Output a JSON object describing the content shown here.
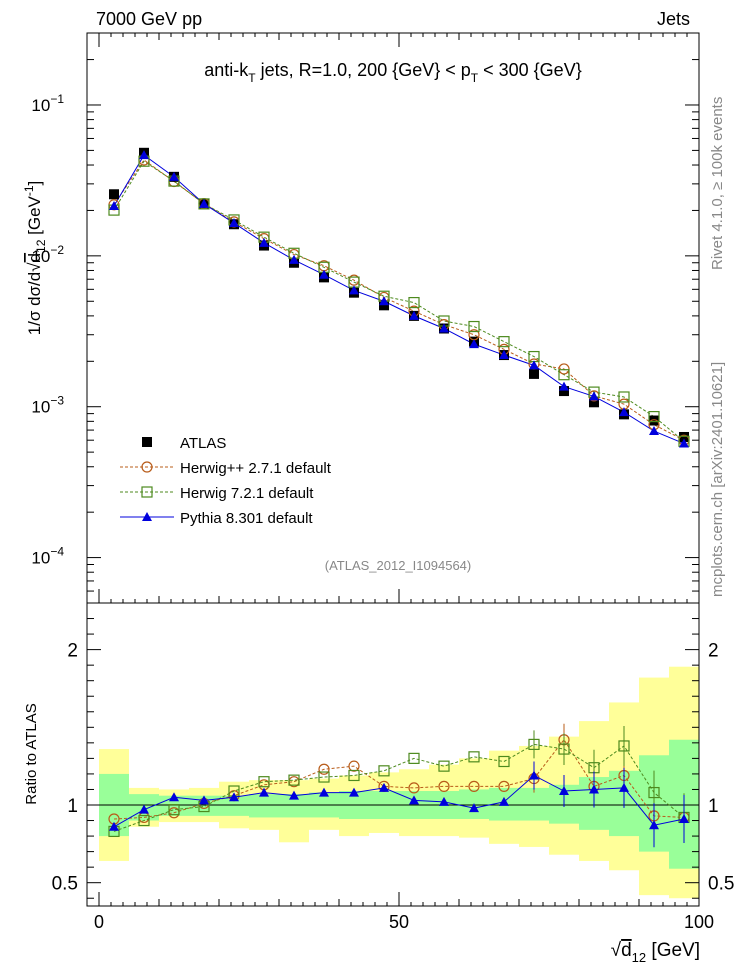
{
  "header": {
    "left": "7000 GeV pp",
    "right": "Jets"
  },
  "side_text": {
    "rivet": "Rivet 4.1.0, ≥ 100k events",
    "mcplots": "mcplots.cern.ch [arXiv:2401.10621]"
  },
  "chart_data": {
    "type": "line",
    "title_parts": {
      "a": "anti-k",
      "a_sub": "T",
      "b": " jets, R=1.0, 200 {GeV}  < p",
      "b_sub": "T",
      "c": " < 300 {GeV}"
    },
    "analysis_label": "(ATLAS_2012_I1094564)",
    "x": [
      2.5,
      7.5,
      12.5,
      17.5,
      22.5,
      27.5,
      32.5,
      37.5,
      42.5,
      47.5,
      52.5,
      57.5,
      62.5,
      67.5,
      72.5,
      77.5,
      82.5,
      87.5,
      92.5,
      97.5
    ],
    "xlim": [
      -2,
      100
    ],
    "main_ylim": [
      5e-05,
      0.3
    ],
    "main_yscale": "log",
    "ratio_ylim": [
      0.35,
      2.3
    ],
    "xlabel": {
      "pre": "√",
      "d": "d",
      "sub": "12",
      "unit": " [GeV]"
    },
    "ylabel_main": {
      "a": "1/σ dσ/d",
      "root": "√",
      "d": "d",
      "sub": "12",
      "unit": " [GeV",
      "sup": "-1",
      "close": "]"
    },
    "ylabel_ratio": "Ratio to ATLAS",
    "main_ticks": [
      {
        "v": 0.0001,
        "base": "10",
        "exp": "−4"
      },
      {
        "v": 0.001,
        "base": "10",
        "exp": "−3"
      },
      {
        "v": 0.01,
        "base": "10",
        "exp": "−2"
      },
      {
        "v": 0.1,
        "base": "10",
        "exp": "−1"
      }
    ],
    "ratio_ticks": [
      {
        "v": 0.5,
        "label": "0.5"
      },
      {
        "v": 1,
        "label": "1"
      },
      {
        "v": 2,
        "label": "2"
      }
    ],
    "x_ticks": [
      {
        "v": 0,
        "label": "0"
      },
      {
        "v": 50,
        "label": "50"
      },
      {
        "v": 100,
        "label": "100"
      }
    ],
    "ratio_bands": {
      "green_lo": [
        0.8,
        0.9,
        0.93,
        0.93,
        0.93,
        0.92,
        0.92,
        0.92,
        0.91,
        0.91,
        0.91,
        0.91,
        0.91,
        0.9,
        0.9,
        0.88,
        0.84,
        0.8,
        0.7,
        0.59
      ],
      "green_hi": [
        1.2,
        1.07,
        1.06,
        1.06,
        1.06,
        1.07,
        1.07,
        1.08,
        1.09,
        1.09,
        1.09,
        1.09,
        1.1,
        1.11,
        1.11,
        1.13,
        1.18,
        1.22,
        1.32,
        1.42
      ],
      "yellow_lo": [
        0.64,
        0.86,
        0.89,
        0.89,
        0.85,
        0.84,
        0.76,
        0.84,
        0.8,
        0.82,
        0.8,
        0.8,
        0.79,
        0.75,
        0.73,
        0.68,
        0.64,
        0.58,
        0.42,
        0.4
      ],
      "yellow_hi": [
        1.36,
        1.11,
        1.1,
        1.11,
        1.15,
        1.16,
        1.16,
        1.17,
        1.19,
        1.21,
        1.23,
        1.26,
        1.3,
        1.35,
        1.38,
        1.44,
        1.54,
        1.66,
        1.82,
        1.89
      ]
    },
    "series": [
      {
        "name": "ATLAS",
        "marker": "square-filled",
        "color": "#000000",
        "values": [
          0.0256,
          0.0482,
          0.0334,
          0.022,
          0.0162,
          0.0117,
          0.009,
          0.0072,
          0.0057,
          0.0047,
          0.004,
          0.0033,
          0.0027,
          0.0022,
          0.00165,
          0.00127,
          0.00107,
          0.00089,
          0.00081,
          0.00063
        ]
      },
      {
        "name": "Herwig++ 2.7.1 default",
        "marker": "circle-open",
        "color": "#b85c1a",
        "values": [
          0.0218,
          0.0432,
          0.0311,
          0.0222,
          0.0168,
          0.013,
          0.0102,
          0.0086,
          0.0069,
          0.0053,
          0.0043,
          0.0035,
          0.003,
          0.0024,
          0.00192,
          0.00178,
          0.00118,
          0.00104,
          0.00076,
          0.0006
        ]
      },
      {
        "name": "Herwig 7.2.1 default",
        "marker": "square-open",
        "color": "#4d8a1e",
        "values": [
          0.0201,
          0.0424,
          0.0313,
          0.0221,
          0.0173,
          0.0133,
          0.0104,
          0.0084,
          0.0067,
          0.0054,
          0.0049,
          0.0037,
          0.0034,
          0.0027,
          0.00215,
          0.00163,
          0.00125,
          0.00116,
          0.00086,
          0.00059
        ]
      },
      {
        "name": "Pythia 8.301 default",
        "marker": "triangle-filled",
        "color": "#0000dd",
        "values": [
          0.0214,
          0.0465,
          0.0334,
          0.0221,
          0.0165,
          0.0122,
          0.0094,
          0.0075,
          0.0059,
          0.005,
          0.004,
          0.0033,
          0.0026,
          0.0022,
          0.00188,
          0.00136,
          0.00117,
          0.00092,
          0.00069,
          0.00057
        ]
      }
    ],
    "ratios": {
      "Herwig++ 2.7.1 default": [
        0.91,
        0.92,
        0.95,
        1.01,
        1.06,
        1.13,
        1.15,
        1.23,
        1.25,
        1.12,
        1.11,
        1.12,
        1.12,
        1.12,
        1.17,
        1.42,
        1.12,
        1.19,
        0.93,
        0.92
      ],
      "Herwig 7.2.1 default": [
        0.83,
        0.9,
        0.97,
        0.99,
        1.09,
        1.15,
        1.16,
        1.18,
        1.19,
        1.22,
        1.3,
        1.25,
        1.31,
        1.28,
        1.39,
        1.36,
        1.24,
        1.38,
        1.08,
        0.92
      ],
      "Pythia 8.301 default": [
        0.86,
        0.97,
        1.05,
        1.03,
        1.05,
        1.08,
        1.06,
        1.08,
        1.08,
        1.11,
        1.03,
        1.02,
        0.98,
        1.02,
        1.19,
        1.09,
        1.1,
        1.11,
        0.87,
        0.91
      ]
    }
  }
}
